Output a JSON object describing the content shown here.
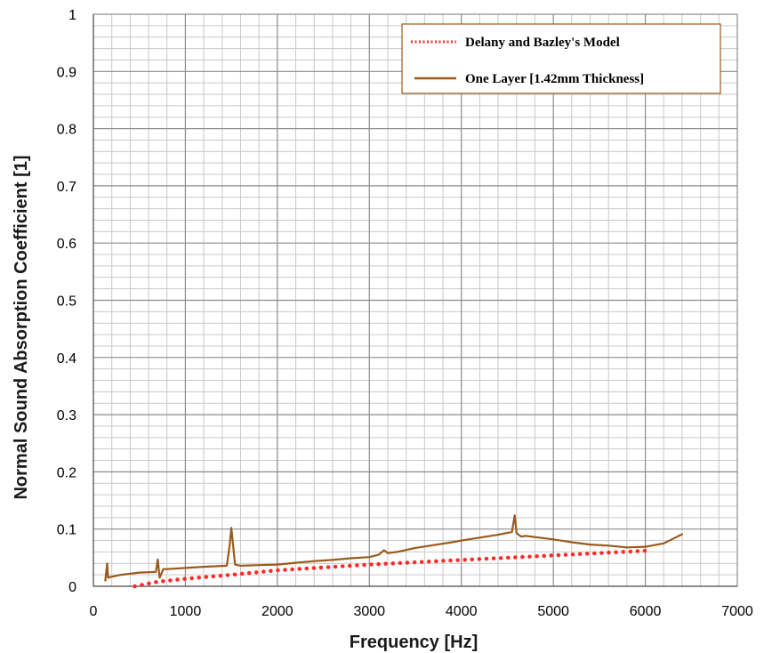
{
  "chart_data": {
    "type": "line",
    "title": "",
    "xlabel": "Frequency [Hz]",
    "ylabel": "Normal Sound Absorption Coefficient [1]",
    "xlim": [
      0,
      7000
    ],
    "ylim": [
      0,
      1
    ],
    "x_ticks": [
      "0",
      "1000",
      "2000",
      "3000",
      "4000",
      "5000",
      "6000",
      "7000"
    ],
    "y_ticks": [
      "0",
      "0.1",
      "0.2",
      "0.3",
      "0.4",
      "0.5",
      "0.6",
      "0.7",
      "0.8",
      "0.9",
      "1"
    ],
    "grid": true,
    "legend_position": "top-right",
    "series": [
      {
        "name": "Delany and Bazley's Model",
        "style": "dotted",
        "color": "#ff2a2a",
        "x": [
          450,
          700,
          1000,
          1500,
          2000,
          2500,
          3000,
          3500,
          4000,
          4500,
          5000,
          5500,
          6000
        ],
        "y": [
          0.0,
          0.008,
          0.013,
          0.02,
          0.028,
          0.033,
          0.038,
          0.042,
          0.046,
          0.05,
          0.054,
          0.058,
          0.062
        ]
      },
      {
        "name": "One Layer [1.42mm Thickness]",
        "style": "solid",
        "color": "#9b5a1a",
        "x": [
          130,
          150,
          160,
          180,
          300,
          500,
          680,
          700,
          720,
          760,
          800,
          1000,
          1200,
          1450,
          1480,
          1500,
          1540,
          1600,
          1800,
          2000,
          2200,
          2400,
          2600,
          2800,
          3000,
          3100,
          3160,
          3200,
          3300,
          3500,
          3700,
          3900,
          4000,
          4200,
          4400,
          4550,
          4580,
          4600,
          4650,
          4700,
          4800,
          5000,
          5200,
          5400,
          5600,
          5800,
          6000,
          6200,
          6400
        ],
        "y": [
          0.01,
          0.04,
          0.015,
          0.016,
          0.02,
          0.024,
          0.025,
          0.047,
          0.015,
          0.03,
          0.03,
          0.032,
          0.034,
          0.036,
          0.07,
          0.102,
          0.038,
          0.036,
          0.037,
          0.038,
          0.041,
          0.044,
          0.046,
          0.049,
          0.051,
          0.055,
          0.063,
          0.058,
          0.06,
          0.067,
          0.072,
          0.077,
          0.08,
          0.085,
          0.09,
          0.095,
          0.124,
          0.093,
          0.087,
          0.088,
          0.086,
          0.082,
          0.077,
          0.073,
          0.071,
          0.068,
          0.069,
          0.075,
          0.091
        ]
      }
    ]
  }
}
